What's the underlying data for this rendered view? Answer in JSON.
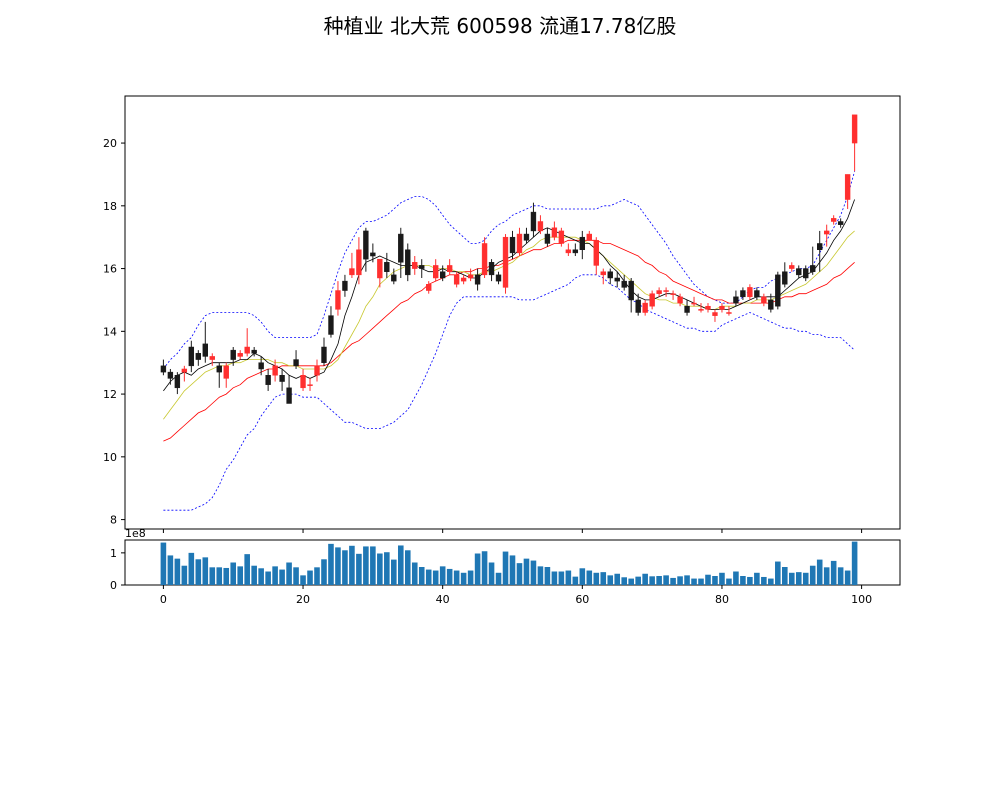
{
  "title": "种植业 北大荒 600598 流通17.78亿股",
  "chart_data": [
    {
      "type": "candlestick",
      "panel": "price",
      "x": [
        0,
        1,
        2,
        3,
        4,
        5,
        6,
        7,
        8,
        9,
        10,
        11,
        12,
        13,
        14,
        15,
        16,
        17,
        18,
        19,
        20,
        21,
        22,
        23,
        24,
        25,
        26,
        27,
        28,
        29,
        30,
        31,
        32,
        33,
        34,
        35,
        36,
        37,
        38,
        39,
        40,
        41,
        42,
        43,
        44,
        45,
        46,
        47,
        48,
        49,
        50,
        51,
        52,
        53,
        54,
        55,
        56,
        57,
        58,
        59,
        60,
        61,
        62,
        63,
        64,
        65,
        66,
        67,
        68,
        69,
        70,
        71,
        72,
        73,
        74,
        75,
        76,
        77,
        78,
        79,
        80,
        81,
        82,
        83,
        84,
        85,
        86,
        87,
        88,
        89,
        90,
        91,
        92,
        93,
        94,
        95,
        96,
        97,
        98,
        99
      ],
      "open": [
        12.9,
        12.7,
        12.6,
        12.7,
        13.5,
        13.3,
        13.6,
        13.1,
        12.9,
        12.5,
        13.4,
        13.2,
        13.3,
        13.4,
        13.0,
        12.6,
        12.6,
        12.6,
        12.2,
        13.1,
        12.2,
        12.3,
        12.6,
        13.5,
        14.5,
        14.7,
        15.6,
        15.8,
        15.8,
        17.2,
        16.5,
        15.7,
        16.2,
        15.8,
        17.1,
        16.6,
        16.0,
        16.1,
        15.3,
        15.7,
        15.9,
        15.9,
        15.5,
        15.6,
        15.7,
        15.8,
        15.8,
        16.2,
        15.8,
        15.4,
        17.0,
        16.5,
        17.1,
        17.8,
        17.2,
        17.1,
        17.0,
        16.8,
        16.5,
        16.6,
        17.0,
        16.9,
        16.1,
        15.8,
        15.9,
        15.7,
        15.6,
        15.6,
        15.0,
        14.6,
        14.8,
        15.2,
        15.3,
        15.2,
        14.9,
        14.8,
        14.9,
        14.7,
        14.7,
        14.5,
        14.7,
        14.6,
        15.1,
        15.3,
        15.1,
        15.3,
        14.9,
        15.0,
        15.8,
        15.9,
        16.0,
        16.0,
        16.0,
        16.1,
        16.8,
        17.1,
        17.5,
        17.5,
        18.2,
        20.0
      ],
      "close": [
        12.7,
        12.5,
        12.2,
        12.8,
        12.9,
        13.1,
        13.2,
        13.2,
        12.7,
        12.9,
        13.1,
        13.3,
        13.5,
        13.3,
        12.8,
        12.3,
        12.9,
        12.4,
        11.7,
        12.9,
        12.6,
        12.3,
        12.9,
        13.0,
        13.9,
        15.3,
        15.3,
        16.0,
        16.6,
        16.3,
        16.4,
        16.3,
        15.9,
        15.6,
        16.2,
        15.8,
        16.2,
        16.0,
        15.5,
        16.1,
        15.7,
        16.1,
        15.8,
        15.7,
        15.8,
        15.5,
        16.8,
        15.8,
        15.6,
        17.0,
        16.5,
        17.1,
        16.9,
        17.2,
        17.5,
        16.8,
        17.3,
        17.2,
        16.6,
        16.5,
        16.6,
        17.1,
        16.9,
        15.9,
        15.7,
        15.6,
        15.4,
        15.0,
        14.6,
        14.9,
        15.2,
        15.3,
        15.3,
        15.2,
        15.1,
        14.6,
        14.9,
        14.7,
        14.8,
        14.6,
        14.8,
        14.6,
        14.9,
        15.1,
        15.4,
        15.1,
        15.1,
        14.7,
        14.8,
        15.5,
        16.1,
        15.8,
        15.7,
        15.9,
        16.6,
        17.2,
        17.6,
        17.4,
        19.0,
        20.9
      ],
      "high": [
        13.1,
        12.8,
        12.7,
        12.9,
        13.7,
        13.4,
        14.3,
        13.3,
        13.0,
        13.0,
        13.5,
        13.4,
        14.1,
        13.5,
        13.2,
        12.8,
        13.1,
        12.8,
        12.6,
        13.4,
        12.8,
        12.5,
        13.1,
        13.8,
        14.8,
        15.6,
        15.8,
        16.5,
        17.0,
        17.3,
        16.8,
        16.2,
        16.5,
        16.0,
        17.3,
        16.8,
        16.4,
        16.3,
        15.6,
        16.3,
        16.1,
        16.3,
        15.9,
        15.8,
        16.0,
        16.0,
        17.0,
        16.3,
        15.9,
        17.1,
        17.2,
        17.3,
        17.3,
        18.1,
        17.7,
        17.3,
        17.5,
        17.3,
        16.8,
        16.8,
        17.2,
        17.2,
        17.0,
        16.0,
        16.0,
        15.9,
        15.8,
        15.7,
        15.2,
        15.0,
        15.3,
        15.4,
        15.4,
        15.3,
        15.2,
        15.0,
        15.1,
        14.9,
        14.9,
        14.7,
        14.9,
        14.8,
        15.3,
        15.4,
        15.5,
        15.4,
        15.2,
        15.2,
        15.9,
        16.2,
        16.2,
        16.1,
        16.1,
        16.7,
        17.2,
        17.4,
        17.7,
        17.6,
        19.0,
        20.9
      ],
      "low": [
        12.6,
        12.3,
        12.0,
        12.4,
        12.7,
        12.9,
        13.0,
        12.9,
        12.2,
        12.2,
        12.9,
        13.1,
        13.2,
        13.2,
        12.6,
        12.1,
        12.4,
        12.1,
        11.7,
        12.8,
        12.1,
        12.1,
        12.4,
        12.9,
        13.8,
        14.5,
        15.1,
        15.7,
        15.5,
        15.9,
        16.2,
        15.4,
        15.7,
        15.5,
        15.7,
        15.6,
        15.8,
        15.7,
        15.2,
        15.6,
        15.6,
        15.8,
        15.4,
        15.5,
        15.6,
        15.3,
        15.7,
        15.6,
        15.5,
        15.2,
        16.3,
        16.4,
        16.8,
        17.0,
        17.1,
        16.7,
        16.9,
        16.7,
        16.4,
        16.4,
        16.3,
        16.9,
        15.8,
        15.5,
        15.5,
        15.4,
        15.3,
        14.6,
        14.5,
        14.5,
        14.7,
        15.1,
        15.1,
        15.0,
        14.8,
        14.5,
        14.8,
        14.6,
        14.6,
        14.3,
        14.6,
        14.5,
        14.8,
        15.0,
        15.0,
        15.0,
        14.8,
        14.6,
        14.7,
        15.4,
        15.9,
        15.7,
        15.6,
        15.8,
        15.9,
        16.7,
        17.4,
        17.3,
        17.9,
        19.1
      ],
      "ma_short": [
        12.1,
        12.4,
        12.6,
        12.7,
        12.6,
        12.8,
        12.9,
        13.0,
        13.0,
        13.0,
        13.0,
        13.1,
        13.1,
        13.3,
        13.2,
        13.0,
        12.9,
        12.8,
        12.6,
        12.5,
        12.6,
        12.5,
        12.6,
        12.7,
        13.1,
        13.6,
        14.5,
        15.1,
        15.8,
        16.2,
        16.3,
        16.4,
        16.3,
        16.2,
        16.1,
        16.1,
        16.1,
        16.0,
        15.9,
        15.9,
        16.0,
        15.9,
        15.9,
        15.8,
        15.7,
        15.7,
        15.9,
        16.0,
        16.2,
        16.3,
        16.4,
        16.6,
        16.8,
        17.0,
        17.2,
        17.3,
        17.2,
        17.1,
        17.0,
        16.9,
        16.8,
        16.8,
        16.6,
        16.4,
        16.1,
        15.9,
        15.6,
        15.3,
        15.1,
        15.0,
        15.0,
        15.1,
        15.2,
        15.2,
        15.1,
        15.0,
        14.9,
        14.8,
        14.7,
        14.7,
        14.7,
        14.7,
        14.8,
        14.9,
        15.0,
        15.1,
        15.1,
        15.1,
        15.1,
        15.3,
        15.5,
        15.7,
        15.8,
        15.9,
        16.2,
        16.5,
        16.9,
        17.2,
        17.6,
        18.2
      ],
      "ma_mid": [
        11.2,
        11.5,
        11.8,
        12.1,
        12.3,
        12.5,
        12.7,
        12.8,
        12.9,
        12.9,
        13.0,
        13.0,
        13.1,
        13.1,
        13.1,
        13.1,
        13.0,
        13.0,
        12.9,
        12.9,
        12.8,
        12.8,
        12.8,
        12.8,
        12.9,
        13.1,
        13.5,
        13.9,
        14.3,
        14.8,
        15.1,
        15.5,
        15.7,
        15.9,
        16.0,
        16.1,
        16.1,
        16.1,
        16.1,
        16.0,
        16.0,
        16.0,
        15.9,
        15.9,
        15.8,
        15.8,
        15.9,
        15.9,
        16.0,
        16.1,
        16.2,
        16.4,
        16.6,
        16.7,
        16.9,
        17.0,
        17.0,
        17.0,
        17.0,
        17.0,
        16.9,
        16.8,
        16.6,
        16.4,
        16.2,
        16.0,
        15.8,
        15.6,
        15.4,
        15.2,
        15.1,
        15.0,
        15.0,
        14.9,
        14.9,
        14.8,
        14.8,
        14.8,
        14.7,
        14.7,
        14.8,
        14.8,
        14.8,
        14.9,
        14.9,
        15.0,
        15.0,
        15.0,
        15.1,
        15.2,
        15.3,
        15.4,
        15.5,
        15.7,
        15.9,
        16.1,
        16.4,
        16.7,
        17.0,
        17.2
      ],
      "ma_long": [
        10.5,
        10.6,
        10.8,
        11.0,
        11.2,
        11.4,
        11.5,
        11.7,
        11.9,
        12.0,
        12.2,
        12.3,
        12.5,
        12.6,
        12.7,
        12.8,
        12.8,
        12.9,
        12.9,
        12.9,
        12.9,
        12.9,
        12.9,
        12.9,
        13.0,
        13.2,
        13.4,
        13.6,
        13.7,
        13.9,
        14.1,
        14.3,
        14.5,
        14.7,
        14.9,
        15.0,
        15.2,
        15.3,
        15.5,
        15.6,
        15.7,
        15.8,
        15.8,
        15.9,
        15.9,
        16.0,
        16.0,
        16.1,
        16.1,
        16.2,
        16.3,
        16.4,
        16.5,
        16.6,
        16.6,
        16.7,
        16.8,
        16.8,
        16.9,
        16.9,
        16.9,
        16.9,
        16.9,
        16.8,
        16.8,
        16.7,
        16.6,
        16.5,
        16.4,
        16.2,
        16.1,
        15.9,
        15.8,
        15.6,
        15.5,
        15.4,
        15.3,
        15.2,
        15.1,
        15.0,
        15.0,
        14.9,
        14.9,
        14.9,
        14.9,
        14.9,
        14.9,
        14.9,
        15.0,
        15.1,
        15.1,
        15.2,
        15.2,
        15.3,
        15.4,
        15.5,
        15.7,
        15.8,
        16.0,
        16.2
      ],
      "boll_upper": [
        12.8,
        13.1,
        13.3,
        13.6,
        13.8,
        14.2,
        14.5,
        14.6,
        14.6,
        14.6,
        14.6,
        14.6,
        14.6,
        14.5,
        14.3,
        14.0,
        13.8,
        13.8,
        13.8,
        13.8,
        13.8,
        13.8,
        13.9,
        14.5,
        15.2,
        15.9,
        16.5,
        16.9,
        17.3,
        17.5,
        17.5,
        17.6,
        17.7,
        17.9,
        18.1,
        18.2,
        18.3,
        18.3,
        18.2,
        18.0,
        17.7,
        17.4,
        17.2,
        17.0,
        16.8,
        16.8,
        16.9,
        17.2,
        17.4,
        17.5,
        17.7,
        17.8,
        17.9,
        18.0,
        18.0,
        17.9,
        17.9,
        17.9,
        17.9,
        17.9,
        17.9,
        17.9,
        17.9,
        18.0,
        18.0,
        18.1,
        18.2,
        18.1,
        18.0,
        17.7,
        17.4,
        17.1,
        16.8,
        16.4,
        16.1,
        15.8,
        15.5,
        15.3,
        15.1,
        15.0,
        14.9,
        14.9,
        14.9,
        15.1,
        15.3,
        15.4,
        15.4,
        15.6,
        15.7,
        15.8,
        15.9,
        16.0,
        16.0,
        16.1,
        16.5,
        16.9,
        17.3,
        17.7,
        18.3,
        19.1
      ],
      "boll_lower": [
        8.3,
        8.3,
        8.3,
        8.3,
        8.3,
        8.4,
        8.5,
        8.7,
        9.1,
        9.6,
        9.9,
        10.3,
        10.7,
        10.9,
        11.3,
        11.6,
        11.9,
        12.0,
        12.0,
        12.0,
        11.9,
        11.9,
        11.9,
        11.7,
        11.5,
        11.3,
        11.1,
        11.1,
        11.0,
        10.9,
        10.9,
        10.9,
        11.0,
        11.1,
        11.3,
        11.5,
        11.9,
        12.3,
        12.8,
        13.3,
        13.9,
        14.5,
        14.9,
        15.1,
        15.1,
        15.1,
        15.1,
        15.1,
        15.1,
        15.1,
        15.1,
        15.0,
        15.0,
        15.0,
        15.1,
        15.2,
        15.3,
        15.4,
        15.5,
        15.7,
        15.8,
        15.8,
        15.8,
        15.7,
        15.5,
        15.4,
        15.2,
        15.0,
        14.9,
        14.7,
        14.6,
        14.5,
        14.4,
        14.3,
        14.2,
        14.1,
        14.1,
        14.0,
        14.0,
        14.0,
        14.2,
        14.3,
        14.4,
        14.5,
        14.6,
        14.5,
        14.4,
        14.3,
        14.2,
        14.1,
        14.1,
        14.0,
        14.0,
        13.9,
        13.9,
        13.8,
        13.8,
        13.8,
        13.6,
        13.4
      ],
      "ylim": [
        7.7,
        21.5
      ],
      "yticks": [
        "8",
        "10",
        "12",
        "14",
        "16",
        "18",
        "20"
      ],
      "xlim": [
        -5.5,
        105.5
      ],
      "colors": {
        "up": "#ff2f2f",
        "down": "#1a1a1a",
        "ma_short": "#000000",
        "ma_mid": "#c8c830",
        "ma_long": "#ff0000",
        "boll": "#0000ff"
      }
    },
    {
      "type": "bar",
      "panel": "volume",
      "x": [
        0,
        1,
        2,
        3,
        4,
        5,
        6,
        7,
        8,
        9,
        10,
        11,
        12,
        13,
        14,
        15,
        16,
        17,
        18,
        19,
        20,
        21,
        22,
        23,
        24,
        25,
        26,
        27,
        28,
        29,
        30,
        31,
        32,
        33,
        34,
        35,
        36,
        37,
        38,
        39,
        40,
        41,
        42,
        43,
        44,
        45,
        46,
        47,
        48,
        49,
        50,
        51,
        52,
        53,
        54,
        55,
        56,
        57,
        58,
        59,
        60,
        61,
        62,
        63,
        64,
        65,
        66,
        67,
        68,
        69,
        70,
        71,
        72,
        73,
        74,
        75,
        76,
        77,
        78,
        79,
        80,
        81,
        82,
        83,
        84,
        85,
        86,
        87,
        88,
        89,
        90,
        91,
        92,
        93,
        94,
        95,
        96,
        97,
        98,
        99
      ],
      "values": [
        1.32,
        0.92,
        0.82,
        0.6,
        1.0,
        0.8,
        0.86,
        0.55,
        0.55,
        0.53,
        0.7,
        0.58,
        0.96,
        0.6,
        0.52,
        0.42,
        0.58,
        0.48,
        0.7,
        0.55,
        0.3,
        0.45,
        0.55,
        0.8,
        1.28,
        1.17,
        1.08,
        1.22,
        0.97,
        1.2,
        1.2,
        0.98,
        1.02,
        0.79,
        1.23,
        1.08,
        0.7,
        0.56,
        0.48,
        0.45,
        0.58,
        0.5,
        0.45,
        0.38,
        0.45,
        0.98,
        1.05,
        0.7,
        0.38,
        1.04,
        0.92,
        0.68,
        0.82,
        0.76,
        0.58,
        0.56,
        0.42,
        0.42,
        0.45,
        0.26,
        0.52,
        0.45,
        0.38,
        0.4,
        0.3,
        0.35,
        0.24,
        0.2,
        0.26,
        0.35,
        0.27,
        0.28,
        0.3,
        0.22,
        0.27,
        0.3,
        0.2,
        0.2,
        0.32,
        0.28,
        0.38,
        0.2,
        0.42,
        0.28,
        0.25,
        0.38,
        0.25,
        0.2,
        0.73,
        0.56,
        0.38,
        0.4,
        0.38,
        0.6,
        0.79,
        0.55,
        0.75,
        0.55,
        0.45,
        1.35
      ],
      "ylim": [
        0,
        1.4
      ],
      "yticks": [
        "0",
        "1"
      ],
      "y_offset_label": "1e8",
      "xticks": [
        "0",
        "20",
        "40",
        "60",
        "80",
        "100"
      ],
      "xlim": [
        -5.5,
        105.5
      ],
      "bar_color": "#1f77b4"
    }
  ]
}
